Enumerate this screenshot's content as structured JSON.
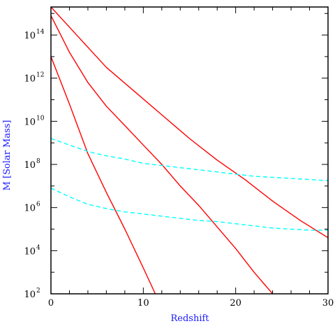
{
  "chart_data": {
    "type": "line",
    "xlabel": "Redshift",
    "ylabel": "M [Solar Mass]",
    "xlim": [
      0,
      30
    ],
    "ylim_log10": [
      2,
      15.3
    ],
    "y_scale": "log",
    "x_ticks": [
      0,
      10,
      20,
      30
    ],
    "y_tick_exponents": [
      2,
      4,
      6,
      8,
      10,
      12,
      14
    ],
    "y_tick_base": "10",
    "series": [
      {
        "style": "solid",
        "color": "#ff0000",
        "x": [
          0,
          2,
          4,
          6,
          8,
          10,
          11.3
        ],
        "log10_y": [
          13.0,
          10.8,
          8.5,
          6.7,
          5.0,
          3.2,
          2.0
        ]
      },
      {
        "style": "solid",
        "color": "#ff0000",
        "x": [
          0,
          2,
          4,
          6,
          8,
          10,
          12,
          14,
          16,
          18,
          20,
          22,
          24
        ],
        "log10_y": [
          14.9,
          13.2,
          11.8,
          10.7,
          9.8,
          8.9,
          8.0,
          7.0,
          6.1,
          5.1,
          4.1,
          3.0,
          2.0
        ]
      },
      {
        "style": "solid",
        "color": "#ff0000",
        "x": [
          0,
          3,
          6,
          9,
          12,
          15,
          18,
          21,
          24,
          27,
          30
        ],
        "log10_y": [
          15.3,
          13.9,
          12.5,
          11.4,
          10.3,
          9.2,
          8.2,
          7.3,
          6.3,
          5.4,
          4.6
        ]
      },
      {
        "style": "dashed",
        "color": "#00ffff",
        "x": [
          0,
          2,
          4,
          6,
          8,
          10,
          12,
          14,
          16,
          18,
          20,
          22,
          24,
          26,
          28,
          30
        ],
        "log10_y": [
          9.2,
          8.9,
          8.6,
          8.4,
          8.25,
          8.05,
          7.95,
          7.85,
          7.75,
          7.65,
          7.55,
          7.45,
          7.4,
          7.35,
          7.3,
          7.25
        ]
      },
      {
        "style": "dashed",
        "color": "#00ffff",
        "x": [
          0,
          2,
          4,
          6,
          8,
          10,
          12,
          14,
          16,
          18,
          20,
          22,
          24,
          26,
          28,
          30
        ],
        "log10_y": [
          6.9,
          6.5,
          6.15,
          5.95,
          5.8,
          5.7,
          5.6,
          5.5,
          5.4,
          5.35,
          5.25,
          5.15,
          5.05,
          5.0,
          4.95,
          4.95
        ]
      }
    ]
  }
}
